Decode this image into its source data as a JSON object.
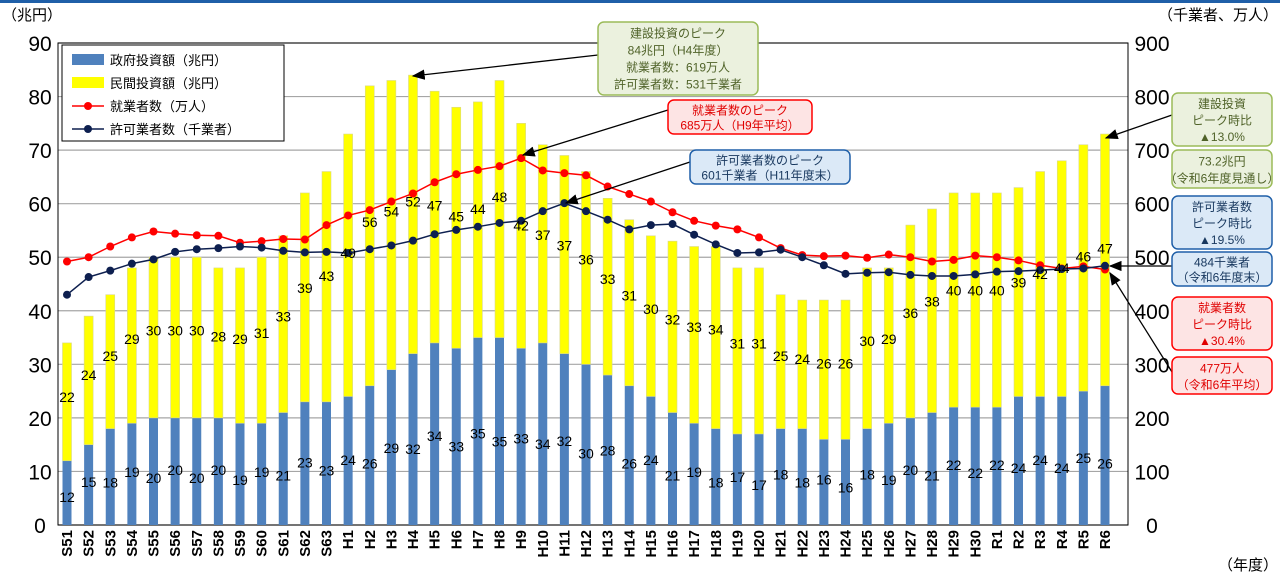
{
  "chart_data": {
    "type": "bar+line",
    "stacked": true,
    "left_axis_unit": "（兆円）",
    "right_axis_unit": "（千業者、万人）",
    "x_unit": "（年度）",
    "left_ylim": [
      0,
      90
    ],
    "left_ticks": [
      0,
      10,
      20,
      30,
      40,
      50,
      60,
      70,
      80,
      90
    ],
    "right_ylim": [
      0,
      900
    ],
    "right_ticks": [
      0,
      100,
      200,
      300,
      400,
      500,
      600,
      700,
      800,
      900
    ],
    "grid": true,
    "legend_placement": "top-left",
    "categories": [
      "S51",
      "S52",
      "S53",
      "S54",
      "S55",
      "S56",
      "S57",
      "S58",
      "S59",
      "S60",
      "S61",
      "S62",
      "S63",
      "H1",
      "H2",
      "H3",
      "H4",
      "H5",
      "H6",
      "H7",
      "H8",
      "H9",
      "H10",
      "H11",
      "H12",
      "H13",
      "H14",
      "H15",
      "H16",
      "H17",
      "H18",
      "H19",
      "H20",
      "H21",
      "H22",
      "H23",
      "H24",
      "H25",
      "H26",
      "H27",
      "H28",
      "H29",
      "H30",
      "R1",
      "R2",
      "R3",
      "R4",
      "R5",
      "R6"
    ],
    "series": [
      {
        "name": "政府投資額（兆円）",
        "kind": "bar",
        "axis": "left",
        "color": "#4f81bd",
        "values": [
          12,
          15,
          18,
          19,
          20,
          20,
          20,
          20,
          19,
          19,
          21,
          23,
          23,
          24,
          26,
          29,
          32,
          34,
          33,
          35,
          35,
          33,
          34,
          32,
          30,
          28,
          26,
          24,
          21,
          19,
          18,
          17,
          17,
          18,
          18,
          16,
          16,
          18,
          19,
          20,
          21,
          22,
          22,
          22,
          24,
          24,
          24,
          25,
          26
        ]
      },
      {
        "name": "民間投資額（兆円）",
        "kind": "bar",
        "axis": "left",
        "color": "#ffff00",
        "values": [
          22,
          24,
          25,
          29,
          30,
          30,
          30,
          28,
          29,
          31,
          33,
          39,
          43,
          49,
          56,
          54,
          52,
          47,
          45,
          44,
          48,
          42,
          37,
          37,
          36,
          33,
          31,
          30,
          32,
          33,
          34,
          31,
          31,
          25,
          24,
          26,
          26,
          30,
          29,
          36,
          38,
          40,
          40,
          40,
          39,
          42,
          44,
          46,
          47
        ]
      },
      {
        "name": "就業者数（万人）",
        "kind": "line",
        "axis": "right",
        "color": "#ff0000",
        "values": [
          492,
          500,
          520,
          537,
          548,
          544,
          541,
          540,
          527,
          530,
          534,
          533,
          560,
          578,
          588,
          604,
          619,
          640,
          655,
          663,
          670,
          685,
          662,
          657,
          653,
          632,
          618,
          604,
          584,
          568,
          559,
          552,
          537,
          517,
          504,
          502,
          503,
          499,
          505,
          500,
          492,
          495,
          503,
          500,
          494,
          485,
          479,
          483,
          477
        ]
      },
      {
        "name": "許可業者数（千業者）",
        "kind": "line",
        "axis": "right",
        "color": "#0d1f4f",
        "values": [
          430,
          463,
          475,
          488,
          496,
          510,
          515,
          517,
          520,
          518,
          512,
          509,
          510,
          508,
          515,
          522,
          531,
          543,
          551,
          557,
          564,
          568,
          586,
          601,
          586,
          570,
          552,
          560,
          562,
          542,
          524,
          508,
          509,
          514,
          500,
          485,
          469,
          471,
          472,
          467,
          465,
          465,
          468,
          473,
          474,
          476,
          478,
          479,
          484
        ]
      }
    ],
    "annotations": [
      {
        "id": "invest-peak",
        "lines": [
          "建設投資のピーク",
          "84兆円（H4年度）",
          "就業者数：619万人",
          "許可業者数：531千業者"
        ],
        "target": "H4",
        "color": "#9bbb59"
      },
      {
        "id": "employ-peak",
        "lines": [
          "就業者数のピーク",
          "685万人（H9年平均）"
        ],
        "target": "H9",
        "color": "#ff0000"
      },
      {
        "id": "license-peak",
        "lines": [
          "許可業者数のピーク",
          "601千業者（H11年度末）"
        ],
        "target": "H11",
        "color": "#1f5fa8"
      },
      {
        "id": "invest-ratio",
        "lines": [
          "建設投資",
          "ピーク時比",
          "▲13.0%"
        ],
        "color": "#9bbb59"
      },
      {
        "id": "invest-now",
        "lines": [
          "73.2兆円",
          "（令和6年度見通し）"
        ],
        "color": "#9bbb59"
      },
      {
        "id": "license-ratio",
        "lines": [
          "許可業者数",
          "ピーク時比",
          "▲19.5%"
        ],
        "color": "#1f5fa8"
      },
      {
        "id": "license-now",
        "lines": [
          "484千業者",
          "（令和6年度末）"
        ],
        "color": "#1f5fa8"
      },
      {
        "id": "employ-ratio",
        "lines": [
          "就業者数",
          "ピーク時比",
          "▲30.4%"
        ],
        "color": "#ff0000"
      },
      {
        "id": "employ-now",
        "lines": [
          "477万人",
          "（令和6年平均）"
        ],
        "color": "#ff0000"
      }
    ]
  }
}
